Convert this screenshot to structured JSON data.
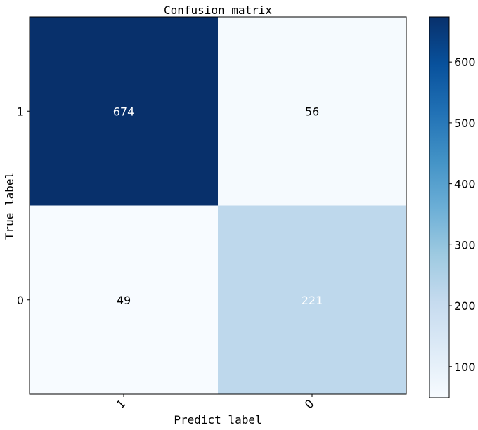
{
  "chart_data": {
    "type": "heatmap",
    "title": "Confusion matrix",
    "xlabel": "Predict label",
    "ylabel": "True label",
    "x_categories": [
      "1",
      "0"
    ],
    "y_categories": [
      "1",
      "0"
    ],
    "values": [
      [
        674,
        56
      ],
      [
        49,
        221
      ]
    ],
    "colormap": "Blues",
    "colorbar": {
      "range": [
        49,
        674
      ],
      "ticks": [
        100,
        200,
        300,
        400,
        500,
        600
      ]
    },
    "x_tick_rotation": 45,
    "text_colors": {
      "dark_cell": "#ffffff",
      "light_cell": "#000000"
    }
  }
}
